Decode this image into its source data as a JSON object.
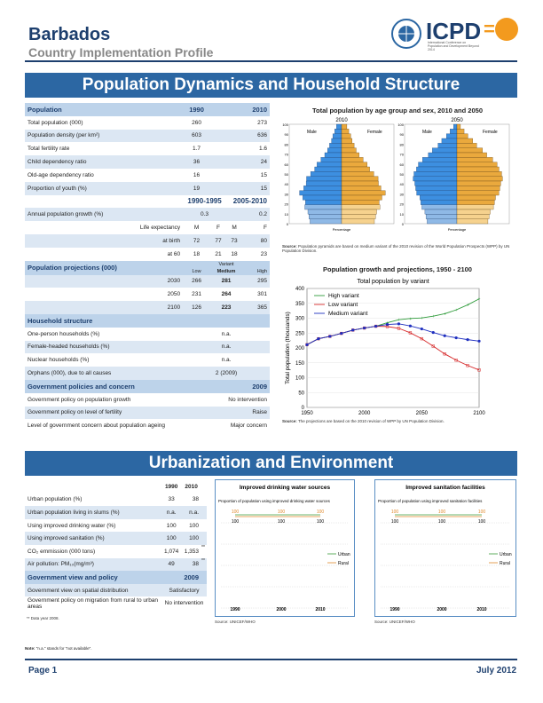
{
  "header": {
    "country": "Barbados",
    "subtitle": "Country Implementation Profile",
    "logo": "ICPD",
    "logo_sub": "International Conference on Population and Development Beyond 2014",
    "logo_eq": "="
  },
  "section1": {
    "title": "Population Dynamics and Household Structure"
  },
  "population": {
    "head": [
      "Population",
      "1990",
      "2010"
    ],
    "rows": [
      [
        "Total population (000)",
        "260",
        "273"
      ],
      [
        "Population density (per km²)",
        "603",
        "636"
      ],
      [
        "Total fertility rate",
        "1.7",
        "1.6"
      ],
      [
        "Child dependency ratio",
        "36",
        "24"
      ],
      [
        "Old-age dependency ratio",
        "16",
        "15"
      ],
      [
        "Proportion of youth (%)",
        "19",
        "15"
      ]
    ]
  },
  "growth": {
    "head": [
      "",
      "1990-1995",
      "2005-2010"
    ],
    "row": [
      "Annual population growth (%)",
      "0.3",
      "0.2"
    ]
  },
  "life": {
    "label1": "Life expectancy",
    "label2": "at birth",
    "label3": "at 60",
    "sex": [
      "M",
      "F",
      "M",
      "F"
    ],
    "birth": [
      "72",
      "77",
      "73",
      "80"
    ],
    "sixty": [
      "18",
      "21",
      "18",
      "23"
    ]
  },
  "projections": {
    "head": "Population projections (000)",
    "variant": "Variant",
    "cols": [
      "Low",
      "Medium",
      "High"
    ],
    "rows": [
      [
        "2030",
        "266",
        "281",
        "295"
      ],
      [
        "2050",
        "231",
        "264",
        "301"
      ],
      [
        "2100",
        "126",
        "223",
        "365"
      ]
    ]
  },
  "household": {
    "head": "Household structure",
    "rows": [
      [
        "One-person households (%)",
        "n.a."
      ],
      [
        "Female-headed households (%)",
        "n.a."
      ],
      [
        "Nuclear households (%)",
        "n.a."
      ],
      [
        "Orphans (000), due to all causes",
        "2 (2009)"
      ]
    ]
  },
  "policy": {
    "head": "Government policies and concern",
    "year": "2009",
    "rows": [
      [
        "Government policy on population growth",
        "No intervention"
      ],
      [
        "Government policy on level of fertility",
        "Raise"
      ],
      [
        "Level of government concern about population ageing",
        "Major concern"
      ]
    ]
  },
  "pyramid": {
    "title": "Total population by age group and sex, 2010 and 2050",
    "years": [
      "2010",
      "2050"
    ],
    "male": "Male",
    "female": "Female",
    "yticks": [
      "100",
      "90",
      "80",
      "70",
      "60",
      "50",
      "40",
      "30",
      "20",
      "10",
      "0"
    ],
    "xlabel": "Percentage",
    "source_label": "Source:",
    "source": "Population pyramids are based on medium variant of the 2010 revision of the World Population Prospects (WPP) by UN Population Division."
  },
  "chart_data": {
    "type": "line",
    "title": "Population growth and projections, 1950 - 2100",
    "subtitle": "Total population by variant",
    "ylabel": "Total population (thousands)",
    "ylim": [
      0,
      400
    ],
    "xlim": [
      1950,
      2100
    ],
    "yticks": [
      0,
      50,
      100,
      150,
      200,
      250,
      300,
      350,
      400
    ],
    "xticks": [
      1950,
      2000,
      2050,
      2100
    ],
    "series": [
      {
        "name": "High variant",
        "color": "#2e9b3a",
        "x": [
          1950,
          1960,
          1970,
          1980,
          1990,
          2000,
          2010,
          2020,
          2030,
          2040,
          2050,
          2060,
          2070,
          2080,
          2090,
          2100
        ],
        "values": [
          211,
          231,
          239,
          249,
          260,
          267,
          273,
          285,
          295,
          299,
          301,
          307,
          315,
          328,
          345,
          365
        ]
      },
      {
        "name": "Low variant",
        "color": "#d62728",
        "x": [
          1950,
          1960,
          1970,
          1980,
          1990,
          2000,
          2010,
          2020,
          2030,
          2040,
          2050,
          2060,
          2070,
          2080,
          2090,
          2100
        ],
        "values": [
          211,
          231,
          239,
          249,
          260,
          267,
          273,
          272,
          266,
          251,
          231,
          206,
          180,
          159,
          141,
          126
        ]
      },
      {
        "name": "Medium variant",
        "color": "#1f2fbf",
        "x": [
          1950,
          1960,
          1970,
          1980,
          1990,
          2000,
          2010,
          2020,
          2030,
          2040,
          2050,
          2060,
          2070,
          2080,
          2090,
          2100
        ],
        "values": [
          211,
          231,
          239,
          249,
          260,
          267,
          273,
          279,
          281,
          274,
          264,
          252,
          241,
          234,
          228,
          223
        ]
      }
    ],
    "source_label": "Source:",
    "source": "The projections are based on the 2010 revision of WPP by UN Population Division."
  },
  "section2": {
    "title": "Urbanization and Environment"
  },
  "urban": {
    "head": [
      "",
      "1990",
      "2010"
    ],
    "rows": [
      [
        "Urban population (%)",
        "33",
        "38",
        ""
      ],
      [
        "Urban population living in slums (%)",
        "n.a.",
        "n.a.",
        ""
      ],
      [
        "Using improved drinking water (%)",
        "100",
        "100",
        ""
      ],
      [
        "Using improved sanitation (%)",
        "100",
        "100",
        ""
      ],
      [
        "CO₂ emmission (000 tons)",
        "1,074",
        "1,353",
        "**"
      ],
      [
        "Air pollution: PM₁₀(mg/m³)",
        "49",
        "38",
        "**"
      ]
    ]
  },
  "urbanpolicy": {
    "head": "Government view and policy",
    "year": "2009",
    "rows": [
      [
        "Government view on spatial distribution",
        "Satisfactory"
      ],
      [
        "Government policy on migration from rural to urban areas",
        "No intervention"
      ]
    ],
    "foot": "** Data year 2008."
  },
  "water": {
    "title": "Improved drinking water sources",
    "sub": "Proportion of population using improved drinking water sources",
    "years": [
      "1990",
      "2000",
      "2010"
    ],
    "urban": [
      "100",
      "100",
      "100"
    ],
    "rural": [
      "100",
      "100",
      "100"
    ],
    "legend": [
      "Urban",
      "Rural"
    ],
    "source": "Source: UNICEF/WHO"
  },
  "sanit": {
    "title": "Improved sanitation facilities",
    "sub": "Proportion of population using improved sanitation facilities",
    "years": [
      "1990",
      "2000",
      "2010"
    ],
    "urban": [
      "100",
      "100",
      "100"
    ],
    "rural": [
      "100",
      "100",
      "100"
    ],
    "legend": [
      "Urban",
      "Rural"
    ],
    "source": "Source: UNICEF/WHO"
  },
  "colors": {
    "urban": "#3a9b3a",
    "rural": "#e08a2e",
    "navy": "#1d3f6e",
    "banner": "#2c67a3"
  },
  "footer": {
    "note_label": "Note:",
    "note": "\"n.a.\" stands for \"not available\".",
    "page": "Page 1",
    "date": "July 2012"
  }
}
